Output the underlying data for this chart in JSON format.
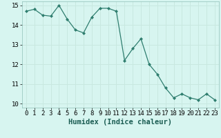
{
  "x": [
    0,
    1,
    2,
    3,
    4,
    5,
    6,
    7,
    8,
    9,
    10,
    11,
    12,
    13,
    14,
    15,
    16,
    17,
    18,
    19,
    20,
    21,
    22,
    23
  ],
  "y": [
    14.7,
    14.8,
    14.5,
    14.45,
    15.0,
    14.3,
    13.75,
    13.6,
    14.4,
    14.85,
    14.85,
    14.7,
    12.2,
    12.8,
    13.3,
    12.0,
    11.5,
    10.8,
    10.3,
    10.5,
    10.3,
    10.2,
    10.5,
    10.2
  ],
  "xlabel": "Humidex (Indice chaleur)",
  "xlim": [
    -0.5,
    23.5
  ],
  "ylim": [
    9.8,
    15.2
  ],
  "yticks": [
    10,
    11,
    12,
    13,
    14,
    15
  ],
  "xticks": [
    0,
    1,
    2,
    3,
    4,
    5,
    6,
    7,
    8,
    9,
    10,
    11,
    12,
    13,
    14,
    15,
    16,
    17,
    18,
    19,
    20,
    21,
    22,
    23
  ],
  "line_color": "#2e7d6e",
  "marker_color": "#2e7d6e",
  "bg_color": "#d7f5f0",
  "grid_color": "#c8e8e0",
  "xlabel_fontsize": 7.5,
  "tick_fontsize": 6.5
}
